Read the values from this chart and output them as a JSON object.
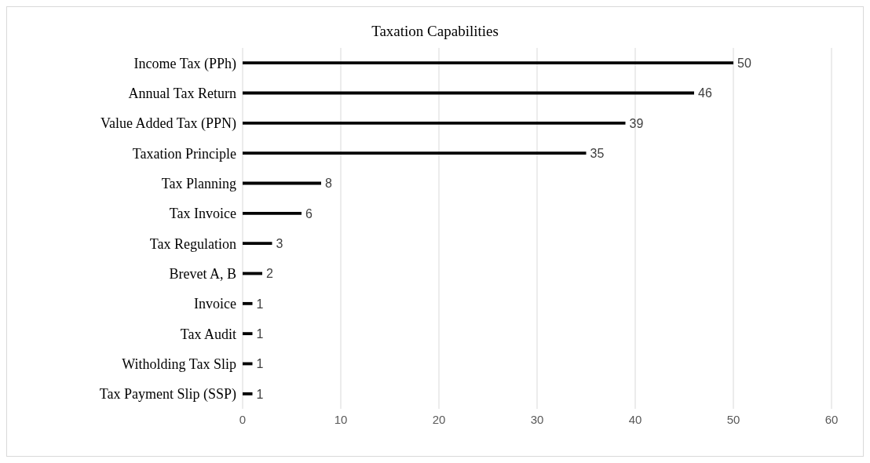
{
  "chart_data": {
    "type": "bar",
    "orientation": "horizontal",
    "title": "Taxation Capabilities",
    "categories": [
      "Income Tax (PPh)",
      "Annual Tax Return",
      "Value Added Tax (PPN)",
      "Taxation Principle",
      "Tax Planning",
      "Tax Invoice",
      "Tax Regulation",
      "Brevet A, B",
      "Invoice",
      "Tax Audit",
      "Witholding Tax Slip",
      "Tax Payment Slip (SSP)"
    ],
    "values": [
      50,
      46,
      39,
      35,
      8,
      6,
      3,
      2,
      1,
      1,
      1,
      1
    ],
    "color": "#000000",
    "xlim": [
      0,
      60
    ],
    "xticks": [
      0,
      10,
      20,
      30,
      40,
      50,
      60
    ],
    "grid": "x",
    "data_labels": true
  }
}
